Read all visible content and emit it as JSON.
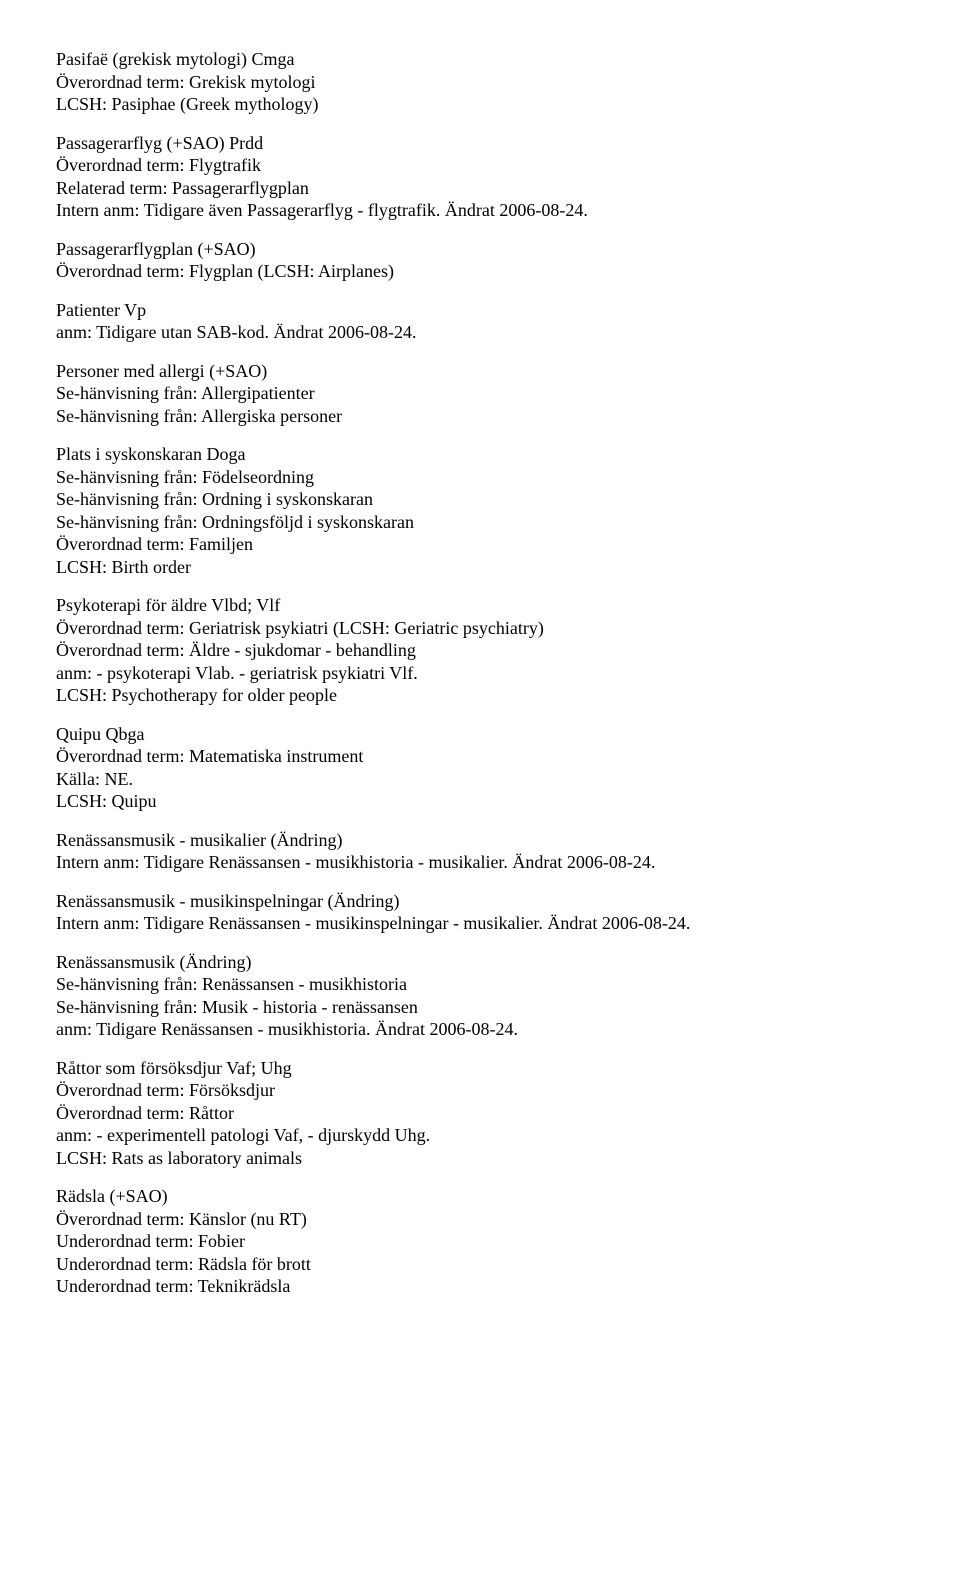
{
  "entries": [
    {
      "lines": [
        "Pasifaë (grekisk mytologi) Cmga",
        "Överordnad term: Grekisk mytologi",
        "LCSH: Pasiphae (Greek mythology)"
      ]
    },
    {
      "lines": [
        "Passagerarflyg (+SAO) Prdd",
        "Överordnad term: Flygtrafik",
        "Relaterad term: Passagerarflygplan",
        "Intern anm: Tidigare även Passagerarflyg - flygtrafik. Ändrat 2006-08-24."
      ]
    },
    {
      "lines": [
        "Passagerarflygplan (+SAO)",
        "Överordnad term: Flygplan (LCSH: Airplanes)"
      ]
    },
    {
      "lines": [
        "Patienter Vp",
        "anm: Tidigare utan SAB-kod. Ändrat 2006-08-24."
      ]
    },
    {
      "lines": [
        "Personer med allergi (+SAO)",
        "Se-hänvisning från: Allergipatienter",
        "Se-hänvisning från: Allergiska personer"
      ]
    },
    {
      "lines": [
        "Plats i syskonskaran Doga",
        "Se-hänvisning från: Födelseordning",
        "Se-hänvisning från: Ordning i syskonskaran",
        "Se-hänvisning från: Ordningsföljd i syskonskaran",
        "Överordnad term: Familjen",
        "LCSH: Birth order"
      ]
    },
    {
      "lines": [
        "Psykoterapi för äldre Vlbd; Vlf",
        "Överordnad term: Geriatrisk psykiatri (LCSH: Geriatric psychiatry)",
        "Överordnad term: Äldre - sjukdomar - behandling",
        "anm: - psykoterapi Vlab. - geriatrisk psykiatri Vlf.",
        "LCSH: Psychotherapy for older people"
      ]
    },
    {
      "lines": [
        "Quipu Qbga",
        "Överordnad term: Matematiska instrument",
        "Källa: NE.",
        "LCSH: Quipu"
      ]
    },
    {
      "lines": [
        "Renässansmusik - musikalier (Ändring)",
        "Intern anm: Tidigare Renässansen - musikhistoria - musikalier. Ändrat 2006-08-24."
      ]
    },
    {
      "lines": [
        "Renässansmusik - musikinspelningar (Ändring)",
        "Intern anm: Tidigare Renässansen - musikinspelningar - musikalier. Ändrat 2006-08-24."
      ]
    },
    {
      "lines": [
        "Renässansmusik (Ändring)",
        "Se-hänvisning från: Renässansen - musikhistoria",
        "Se-hänvisning från: Musik - historia - renässansen",
        "anm: Tidigare Renässansen - musikhistoria. Ändrat 2006-08-24."
      ]
    },
    {
      "lines": [
        "Råttor som försöksdjur Vaf; Uhg",
        "Överordnad term: Försöksdjur",
        "Överordnad term: Råttor",
        "anm: - experimentell patologi Vaf, - djurskydd Uhg.",
        "LCSH: Rats as laboratory animals"
      ]
    },
    {
      "lines": [
        "Rädsla (+SAO)",
        "Överordnad term: Känslor (nu RT)",
        "Underordnad term: Fobier",
        "Underordnad term: Rädsla för brott",
        "Underordnad term: Teknikrädsla"
      ]
    }
  ]
}
